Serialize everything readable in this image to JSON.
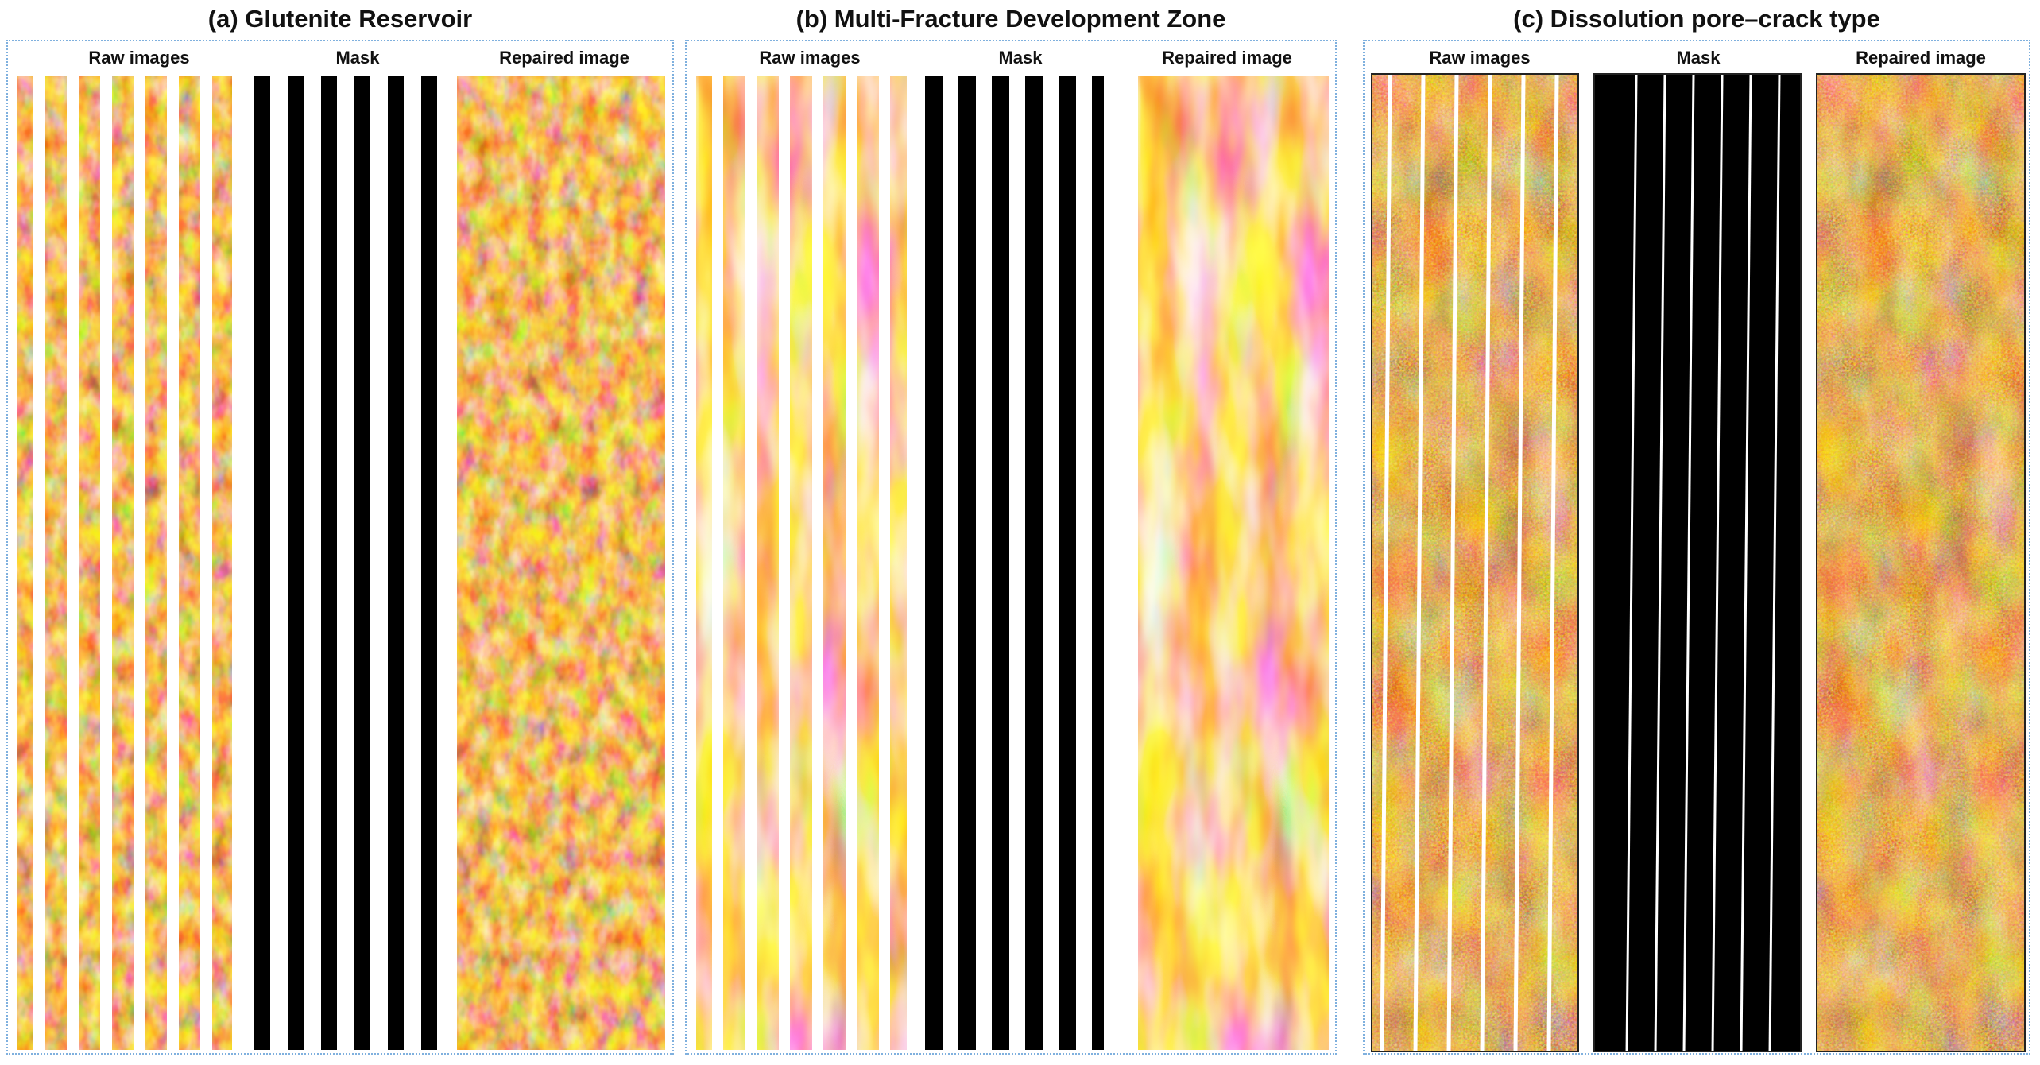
{
  "figure": {
    "panels": [
      {
        "id": "a",
        "title": "(a) Glutenite Reservoir",
        "columns": {
          "raw": "Raw images",
          "mask": "Mask",
          "repaired": "Repaired image"
        },
        "texture": "blocky",
        "stripe_style": "wide-straight",
        "stripe_count": 6
      },
      {
        "id": "b",
        "title": "(b) Multi-Fracture Development Zone",
        "columns": {
          "raw": "Raw images",
          "mask": "Mask",
          "repaired": "Repaired image"
        },
        "texture": "banded",
        "stripe_style": "wide-straight",
        "stripe_count": 6
      },
      {
        "id": "c",
        "title": "(c) Dissolution pore–crack type",
        "columns": {
          "raw": "Raw images",
          "mask": "Mask",
          "repaired": "Repaired image"
        },
        "texture": "speckled",
        "stripe_style": "thin-slanted",
        "stripe_count": 6
      }
    ],
    "colors": {
      "dark": "#2a0a00",
      "mid": "#b0400a",
      "orange": "#e8780f",
      "light": "#fff3d6",
      "panel_border": "#7fb0de",
      "mask_black": "#000000"
    }
  }
}
